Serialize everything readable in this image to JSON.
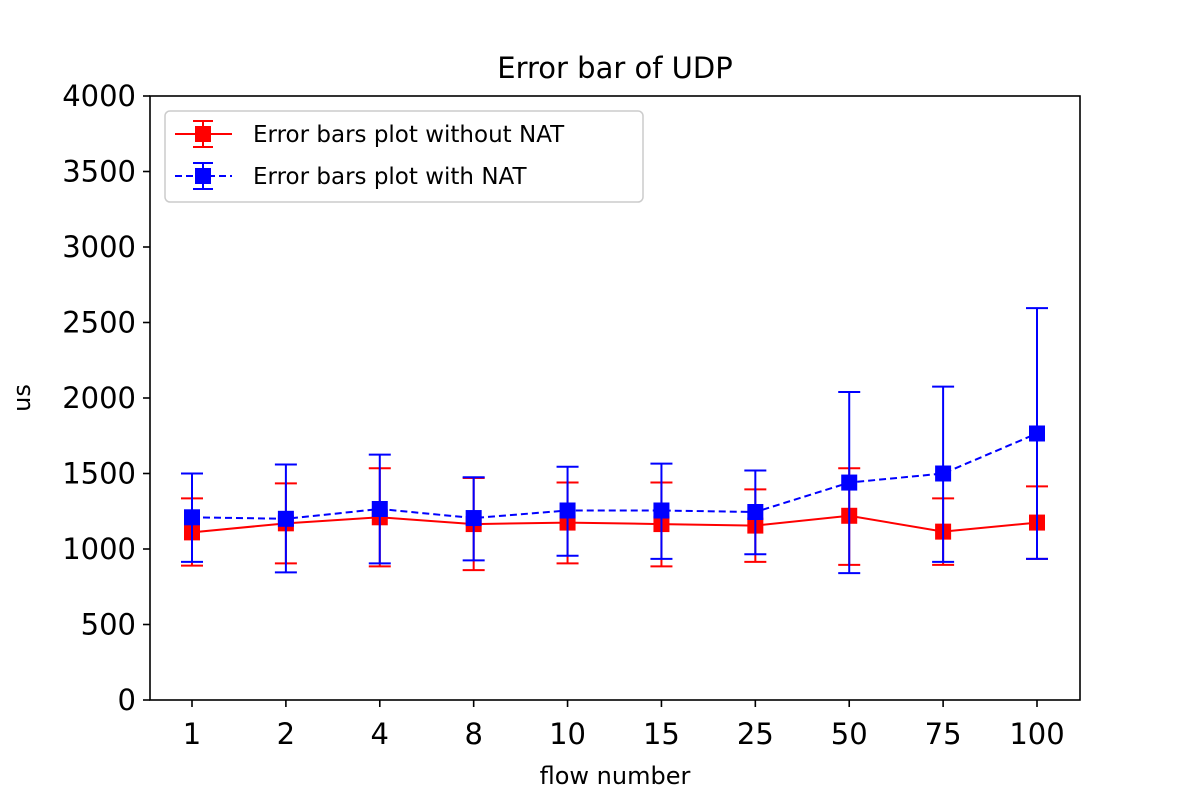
{
  "chart_data": {
    "type": "line",
    "title": "Error bar of UDP",
    "xlabel": "flow number",
    "ylabel": "us",
    "categories": [
      "1",
      "2",
      "4",
      "8",
      "10",
      "15",
      "25",
      "50",
      "75",
      "100"
    ],
    "ylim": [
      0,
      4000
    ],
    "yticks": [
      "0",
      "500",
      "1000",
      "1500",
      "2000",
      "2500",
      "3000",
      "3500",
      "4000"
    ],
    "grid": false,
    "legend_position": "top-left",
    "series": [
      {
        "name": "Error bars plot without NAT",
        "color": "#ff0000",
        "line_style": "solid",
        "marker": "square",
        "values": [
          1110,
          1170,
          1210,
          1165,
          1175,
          1165,
          1155,
          1220,
          1115,
          1175
        ],
        "err_low": [
          890,
          905,
          885,
          860,
          905,
          885,
          915,
          895,
          895,
          935
        ],
        "err_high": [
          1335,
          1435,
          1535,
          1470,
          1440,
          1440,
          1395,
          1535,
          1335,
          1415
        ]
      },
      {
        "name": "Error bars plot with NAT",
        "color": "#0000ff",
        "line_style": "dashed",
        "marker": "square",
        "values": [
          1210,
          1200,
          1265,
          1205,
          1255,
          1255,
          1245,
          1440,
          1500,
          1765
        ],
        "err_low": [
          915,
          845,
          905,
          925,
          955,
          935,
          965,
          840,
          915,
          935
        ],
        "err_high": [
          1500,
          1560,
          1625,
          1475,
          1545,
          1565,
          1520,
          2040,
          2075,
          2595
        ]
      }
    ]
  }
}
